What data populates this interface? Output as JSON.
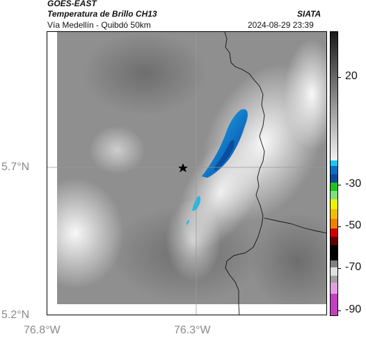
{
  "header": {
    "satellite": "GOES-EAST",
    "product": "Temperatura de Brillo CH13",
    "region": "Vía Medellín - Quibdó 50km",
    "agency": "SIATA",
    "timestamp": "2024-08-29 23:39"
  },
  "axes": {
    "lat_ticks": [
      "5.7°N",
      "5.2°N"
    ],
    "lon_ticks": [
      "76.8°W",
      "76.3°W"
    ]
  },
  "colorbar": {
    "ticks": [
      "20",
      "-30",
      "-50",
      "-70",
      "-90"
    ],
    "colors": {
      "gray_top": "#1a1a1a",
      "gray_bottom": "#f2f2f2",
      "cyan": "#18c8f0",
      "blue": "#0a4a9a",
      "green": "#20c020",
      "yellow": "#f0f000",
      "orange": "#f08000",
      "red": "#d00000",
      "black": "#000000",
      "light": "#e0e0e0",
      "magenta": "#c040c0"
    }
  },
  "map": {
    "marker": "star-icon",
    "background_colors": {
      "cloud_light": "#f4f4f4",
      "cloud_mid": "#8c8c8c",
      "cold_core": "#1060b0"
    }
  }
}
